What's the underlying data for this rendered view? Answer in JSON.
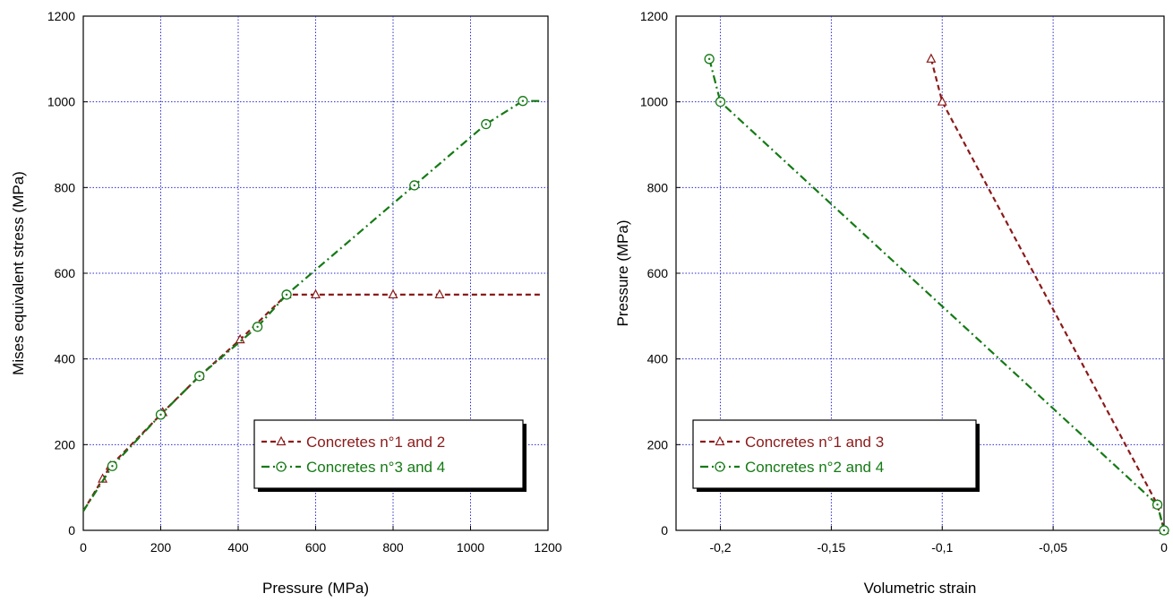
{
  "chart_data": [
    {
      "type": "line",
      "xlabel": "Pressure (MPa)",
      "ylabel": "Mises equivalent stress (MPa)",
      "xlim": [
        0,
        1200
      ],
      "ylim": [
        0,
        1200
      ],
      "x_ticks": [
        "0",
        "200",
        "400",
        "600",
        "800",
        "1000",
        "1200"
      ],
      "y_ticks": [
        "0",
        "200",
        "400",
        "600",
        "800",
        "1000",
        "1200"
      ],
      "grid": true,
      "legend_position": "bottom-right",
      "series": [
        {
          "name": "Concretes n°1 and 2",
          "color": "#8b1a1a",
          "line_style": "dashed",
          "marker": "triangle",
          "x": [
            0,
            50,
            70,
            205,
            300,
            405,
            525,
            600,
            800,
            920,
            1180
          ],
          "y": [
            45,
            120,
            150,
            275,
            360,
            445,
            550,
            550,
            550,
            550,
            550
          ]
        },
        {
          "name": "Concretes n°3 and 4",
          "color": "#157a15",
          "line_style": "dash-dot",
          "marker": "circle-dot",
          "x": [
            0,
            75,
            200,
            300,
            450,
            525,
            855,
            1040,
            1135,
            1180
          ],
          "y": [
            45,
            150,
            270,
            360,
            475,
            550,
            805,
            948,
            1002,
            1002
          ]
        }
      ]
    },
    {
      "type": "line",
      "xlabel": "Volumetric strain",
      "ylabel": "Pressure (MPa)",
      "xlim": [
        -0.22,
        0
      ],
      "ylim": [
        0,
        1200
      ],
      "x_ticks": [
        "-0,2",
        "-0,15",
        "-0,1",
        "-0,05",
        "0"
      ],
      "y_ticks": [
        "0",
        "200",
        "400",
        "600",
        "800",
        "1000",
        "1200"
      ],
      "grid": true,
      "legend_position": "bottom-left",
      "series": [
        {
          "name": "Concretes n°1 and 3",
          "color": "#8b1a1a",
          "line_style": "dashed",
          "marker": "triangle",
          "x": [
            -0.105,
            -0.1,
            -0.003,
            0
          ],
          "y": [
            1100,
            1000,
            60,
            0
          ]
        },
        {
          "name": "Concretes n°2 and 4",
          "color": "#157a15",
          "line_style": "dash-dot",
          "marker": "circle-dot",
          "x": [
            -0.205,
            -0.2,
            -0.003,
            0
          ],
          "y": [
            1100,
            1000,
            60,
            0
          ]
        }
      ]
    }
  ]
}
